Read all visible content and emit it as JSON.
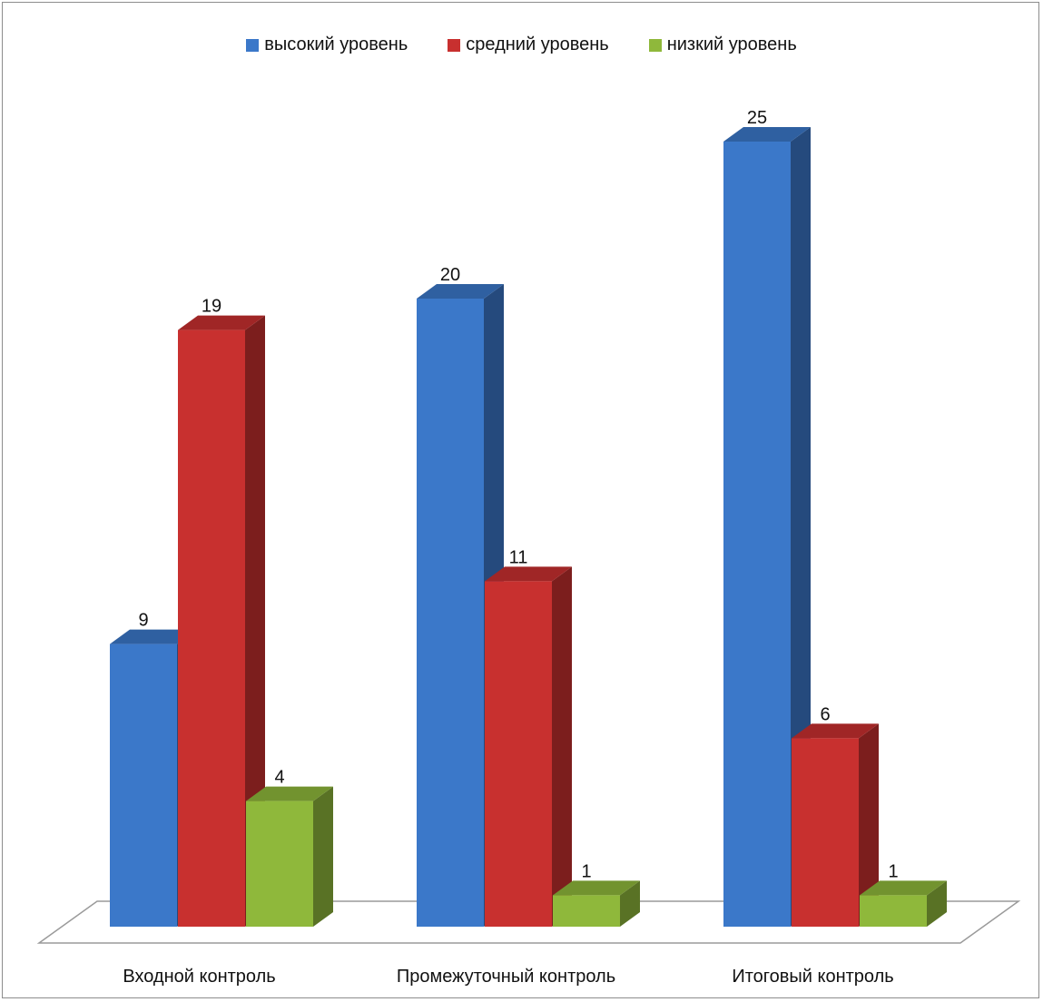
{
  "chart_data": {
    "type": "bar",
    "categories": [
      "Входной контроль",
      "Промежуточный контроль",
      "Итоговый контроль"
    ],
    "series": [
      {
        "name": "высокий уровень",
        "values": [
          9,
          20,
          25
        ],
        "color": "#3b78c9"
      },
      {
        "name": "средний уровень",
        "values": [
          19,
          11,
          6
        ],
        "color": "#c8302f"
      },
      {
        "name": "низкий уровень",
        "values": [
          4,
          1,
          1
        ],
        "color": "#8fb83b"
      }
    ],
    "ylim": [
      0,
      25
    ],
    "legend_position": "top",
    "grid": false,
    "three_d": true
  }
}
